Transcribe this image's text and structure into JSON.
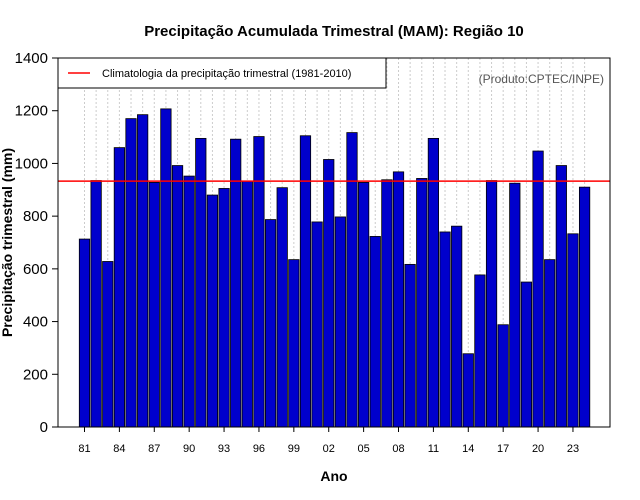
{
  "chart_data": {
    "type": "bar",
    "title": "Precipitação Acumulada Trimestral (MAM): Região 10",
    "xlabel": "Ano",
    "ylabel": "Precipitação trimestral (mm)",
    "ylim": [
      0,
      1400
    ],
    "yticks": [
      0,
      200,
      400,
      600,
      800,
      1000,
      1200,
      1400
    ],
    "ytick_labels": [
      "0",
      "200",
      "400",
      "600",
      "800",
      "1000",
      "1200",
      "1400"
    ],
    "categories": [
      "1981",
      "1982",
      "1983",
      "1984",
      "1985",
      "1986",
      "1987",
      "1988",
      "1989",
      "1990",
      "1991",
      "1992",
      "1993",
      "1994",
      "1995",
      "1996",
      "1997",
      "1998",
      "1999",
      "2000",
      "2001",
      "2002",
      "2003",
      "2004",
      "2005",
      "2006",
      "2007",
      "2008",
      "2009",
      "2010",
      "2011",
      "2012",
      "2013",
      "2014",
      "2015",
      "2016",
      "2017",
      "2018",
      "2019",
      "2020",
      "2021",
      "2022",
      "2023",
      "2024"
    ],
    "xtick_labels": [
      "81",
      "84",
      "87",
      "90",
      "93",
      "96",
      "99",
      "02",
      "05",
      "08",
      "11",
      "14",
      "17",
      "20",
      "23"
    ],
    "xtick_every": 3,
    "values": [
      713,
      935,
      628,
      1060,
      1170,
      1185,
      928,
      1207,
      992,
      952,
      1095,
      880,
      905,
      1092,
      933,
      1102,
      787,
      908,
      635,
      1105,
      778,
      1015,
      797,
      1117,
      928,
      723,
      938,
      968,
      617,
      943,
      1095,
      740,
      762,
      278,
      577,
      935,
      388,
      925,
      550,
      1047,
      635,
      992,
      733,
      910
    ],
    "climatology": {
      "label": "Climatologia da precipitação trimestral (1981-2010)",
      "value": 933
    },
    "legend_position": "top-left",
    "grid": "vertical-dotted",
    "source_note": "(Produto:CPTEC/INPE)",
    "colors": {
      "bar_fill": "#0000cc",
      "bar_stroke": "#000000",
      "climatology_line": "#ff0000",
      "grid": "#cccccc",
      "source_text": "#555555"
    }
  }
}
